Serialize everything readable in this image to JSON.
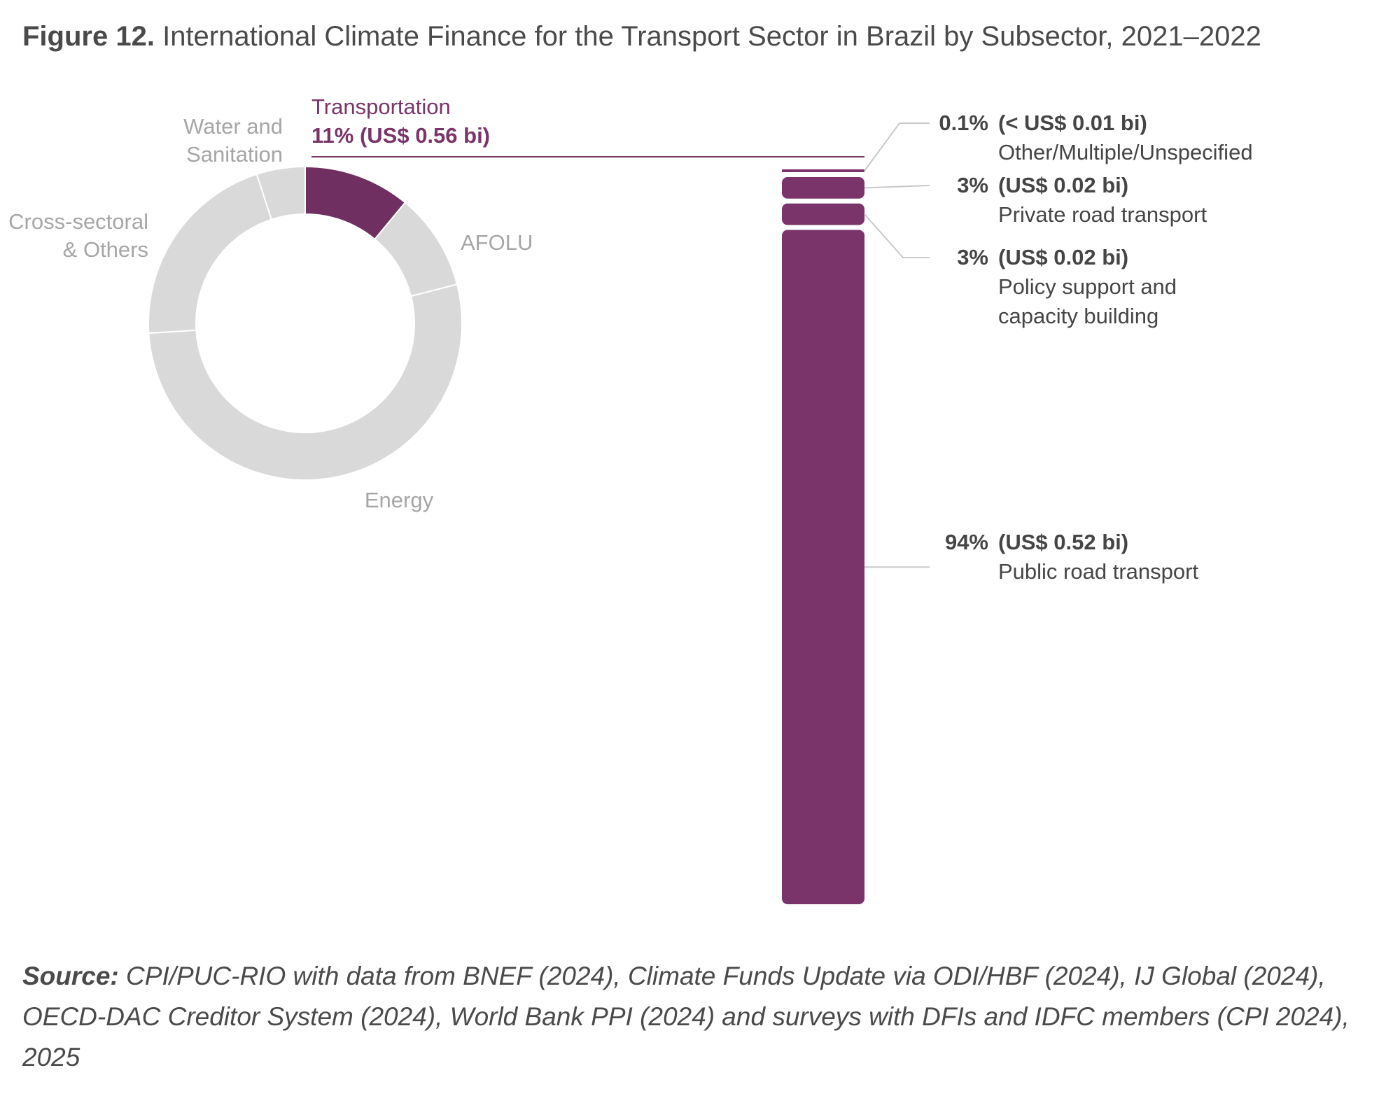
{
  "title": {
    "lead": "Figure 12.",
    "text": "International Climate Finance for the Transport Sector in Brazil by Subsector, 2021–2022"
  },
  "source": {
    "lead": "Source:",
    "text": "CPI/PUC-RIO with data from BNEF (2024), Climate Funds Update via ODI/HBF (2024), IJ Global (2024), OECD-DAC Creditor System (2024), World Bank PPI (2024) and surveys with DFIs and IDFC members (CPI 2024), 2025"
  },
  "colors": {
    "accent": "#7a3469",
    "donut_accent": "#6f2f60",
    "grey": "#d9d9d9",
    "muted_text": "#a6a6a6",
    "leader": "#c8c8c8",
    "dark_text": "#454545"
  },
  "chart_data": [
    {
      "type": "pie",
      "style": "donut",
      "segments": [
        {
          "label": "Transportation",
          "share": 11,
          "value_label": "11% (US$ 0.56 bi)",
          "highlight": true
        },
        {
          "label": "AFOLU",
          "share": 10,
          "highlight": false
        },
        {
          "label": "Energy",
          "share": 53,
          "highlight": false
        },
        {
          "label": "Cross-sectoral & Others",
          "label_lines": [
            "Cross-sectoral",
            "& Others"
          ],
          "share": 21,
          "highlight": false
        },
        {
          "label": "Water and Sanitation",
          "label_lines": [
            "Water and",
            "Sanitation"
          ],
          "share": 5,
          "highlight": false
        }
      ]
    },
    {
      "type": "bar",
      "style": "stacked-column",
      "total_bi": 0.56,
      "segments": [
        {
          "name": "Other/Multiple/Unspecified",
          "name_lines": [
            "Other/Multiple/Unspecified"
          ],
          "percent": 0.1,
          "pct_label": "0.1%",
          "value_label": "(< US$ 0.01 bi)"
        },
        {
          "name": "Private road transport",
          "name_lines": [
            "Private road transport"
          ],
          "percent": 3,
          "pct_label": "3%",
          "value_label": "(US$ 0.02 bi)"
        },
        {
          "name": "Policy support and capacity building",
          "name_lines": [
            "Policy support and",
            "capacity building"
          ],
          "percent": 3,
          "pct_label": "3%",
          "value_label": "(US$ 0.02 bi)"
        },
        {
          "name": "Public road transport",
          "name_lines": [
            "Public road transport"
          ],
          "percent": 94,
          "pct_label": "94%",
          "value_label": "(US$ 0.52 bi)"
        }
      ]
    }
  ]
}
